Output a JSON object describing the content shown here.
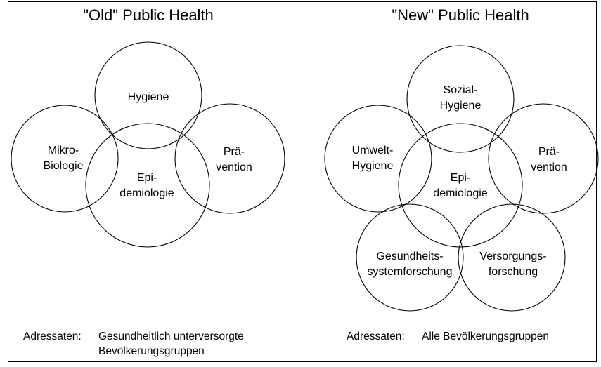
{
  "old": {
    "title": "\"Old\" Public Health",
    "circles": {
      "hygiene": [
        "Hygiene"
      ],
      "mikrobiologie": [
        "Mikro-",
        "Biologie"
      ],
      "epidemiologie": [
        "Epi-",
        "demiologie"
      ],
      "praevention": [
        "Prä-",
        "vention"
      ]
    },
    "footer": {
      "label": "Adressaten:",
      "line1": "Gesundheitlich unterversorgte",
      "line2": "Bevölkerungsgruppen"
    }
  },
  "new": {
    "title": "\"New\" Public Health",
    "circles": {
      "sozialhygiene": [
        "Sozial-",
        "Hygiene"
      ],
      "umwelthygiene": [
        "Umwelt-",
        "Hygiene"
      ],
      "epidemiologie": [
        "Epi-",
        "demiologie"
      ],
      "praevention": [
        "Prä-",
        "vention"
      ],
      "gesundheitssystemforschung": [
        "Gesundheits-",
        "systemforschung"
      ],
      "versorgungsforschung": [
        "Versorgungs-",
        "forschung"
      ]
    },
    "footer": {
      "label": "Adressaten:",
      "line1": "Alle Bevölkerungsgruppen"
    }
  }
}
